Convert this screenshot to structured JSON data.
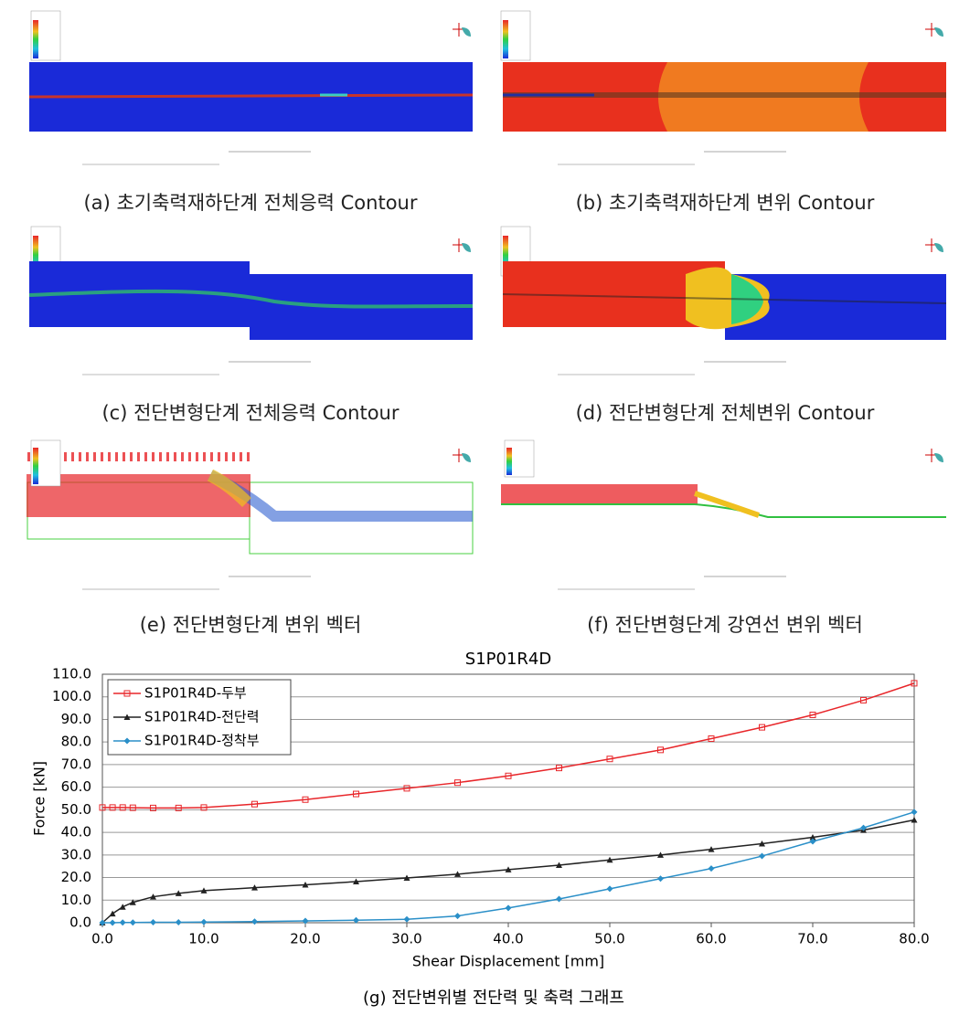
{
  "panels": [
    {
      "caption": "(a) 초기축력재하단계 전체응력 Contour"
    },
    {
      "caption": "(b) 초기축력재하단계 변위 Contour"
    },
    {
      "caption": "(c) 전단변형단계 전체응력 Contour"
    },
    {
      "caption": "(d) 전단변형단계 전체변위 Contour"
    },
    {
      "caption": "(e) 전단변형단계 변위 벡터"
    },
    {
      "caption": "(f) 전단변형단계 강연선 변위 벡터"
    }
  ],
  "figure_caption": "(g) 전단변위별 전단력 및 축력 그래프",
  "chart_data": {
    "type": "line",
    "title": "S1P01R4D",
    "x_label": "Shear Displacement [mm]",
    "y_label": "Force [kN]",
    "x": [
      0,
      1,
      2,
      3,
      5,
      7.5,
      10,
      15,
      20,
      25,
      30,
      35,
      40,
      45,
      50,
      55,
      60,
      65,
      70,
      75,
      80
    ],
    "series": [
      {
        "name": "S1P01R4D-두부",
        "color": "#e8262a",
        "marker": "square",
        "values": [
          51,
          51,
          51,
          50.9,
          50.8,
          50.8,
          51,
          52.5,
          54.5,
          57,
          59.5,
          62,
          65,
          68.5,
          72.5,
          76.5,
          81.5,
          86.5,
          92,
          98.5,
          106
        ]
      },
      {
        "name": "S1P01R4D-전단력",
        "color": "#222222",
        "marker": "triangle",
        "values": [
          0,
          4,
          7,
          9,
          11.5,
          13,
          14.2,
          15.5,
          16.8,
          18.2,
          19.8,
          21.5,
          23.5,
          25.5,
          27.8,
          30,
          32.5,
          35,
          37.8,
          41,
          45.5
        ]
      },
      {
        "name": "S1P01R4D-정착부",
        "color": "#2a8fc8",
        "marker": "diamond",
        "values": [
          0,
          0,
          0.1,
          0.1,
          0.2,
          0.2,
          0.3,
          0.5,
          0.8,
          1.1,
          1.5,
          3,
          6.5,
          10.5,
          15,
          19.5,
          24,
          29.5,
          36,
          42,
          49
        ]
      }
    ],
    "xlim": [
      0,
      80
    ],
    "xticks": [
      {
        "value": 0,
        "label": "0.0"
      },
      {
        "value": 10,
        "label": "10.0"
      },
      {
        "value": 20,
        "label": "20.0"
      },
      {
        "value": 30,
        "label": "30.0"
      },
      {
        "value": 40,
        "label": "40.0"
      },
      {
        "value": 50,
        "label": "50.0"
      },
      {
        "value": 60,
        "label": "60.0"
      },
      {
        "value": 70,
        "label": "70.0"
      },
      {
        "value": 80,
        "label": "80.0"
      }
    ],
    "ylim": [
      0,
      110
    ],
    "yticks": [
      {
        "value": 0,
        "label": "0.0"
      },
      {
        "value": 10,
        "label": "10.0"
      },
      {
        "value": 20,
        "label": "20.0"
      },
      {
        "value": 30,
        "label": "30.0"
      },
      {
        "value": 40,
        "label": "40.0"
      },
      {
        "value": 50,
        "label": "50.0"
      },
      {
        "value": 60,
        "label": "60.0"
      },
      {
        "value": 70,
        "label": "70.0"
      },
      {
        "value": 80,
        "label": "80.0"
      },
      {
        "value": 90,
        "label": "90.0"
      },
      {
        "value": 100,
        "label": "100.0"
      },
      {
        "value": 110,
        "label": "110.0"
      }
    ],
    "grid": "y",
    "legend": "upper left"
  }
}
